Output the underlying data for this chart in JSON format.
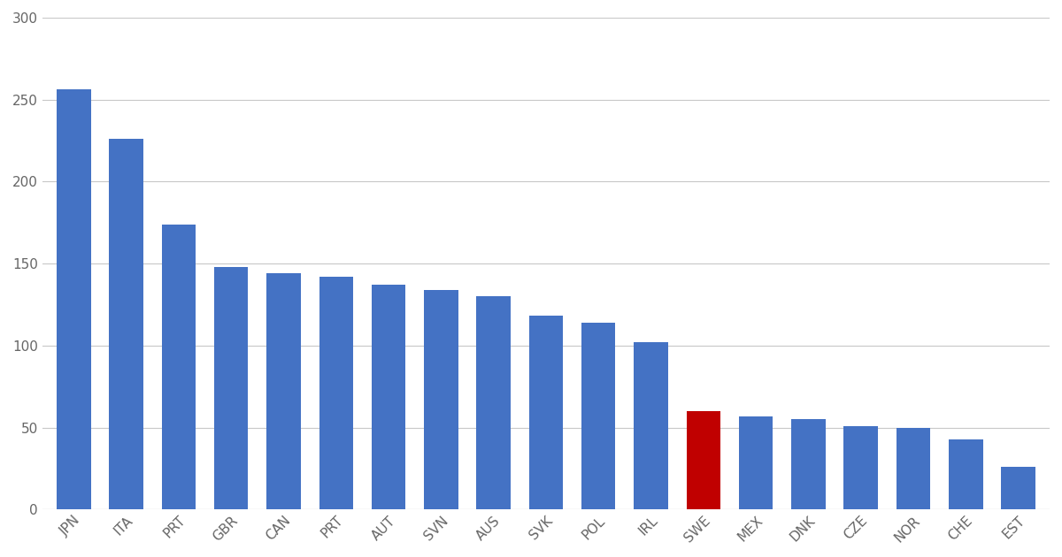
{
  "categories": [
    "JPN",
    "ITA",
    "PRT",
    "GBR",
    "CAN",
    "PRT",
    "AUT",
    "SVN",
    "AUS",
    "SVK",
    "POL",
    "IRL",
    "SWE",
    "MEX",
    "DNK",
    "CZE",
    "NOR",
    "CHE",
    "EST"
  ],
  "values": [
    256,
    226,
    174,
    148,
    144,
    142,
    137,
    134,
    130,
    118,
    114,
    102,
    60,
    57,
    55,
    51,
    50,
    43,
    26
  ],
  "bar_colors": [
    "#4472C4",
    "#4472C4",
    "#4472C4",
    "#4472C4",
    "#4472C4",
    "#4472C4",
    "#4472C4",
    "#4472C4",
    "#4472C4",
    "#4472C4",
    "#4472C4",
    "#4472C4",
    "#C00000",
    "#4472C4",
    "#4472C4",
    "#4472C4",
    "#4472C4",
    "#4472C4",
    "#4472C4"
  ],
  "ylim": [
    0,
    300
  ],
  "yticks": [
    0,
    50,
    100,
    150,
    200,
    250,
    300
  ],
  "background_color": "#FFFFFF",
  "grid_color": "#C8C8C8",
  "bar_width": 0.65
}
